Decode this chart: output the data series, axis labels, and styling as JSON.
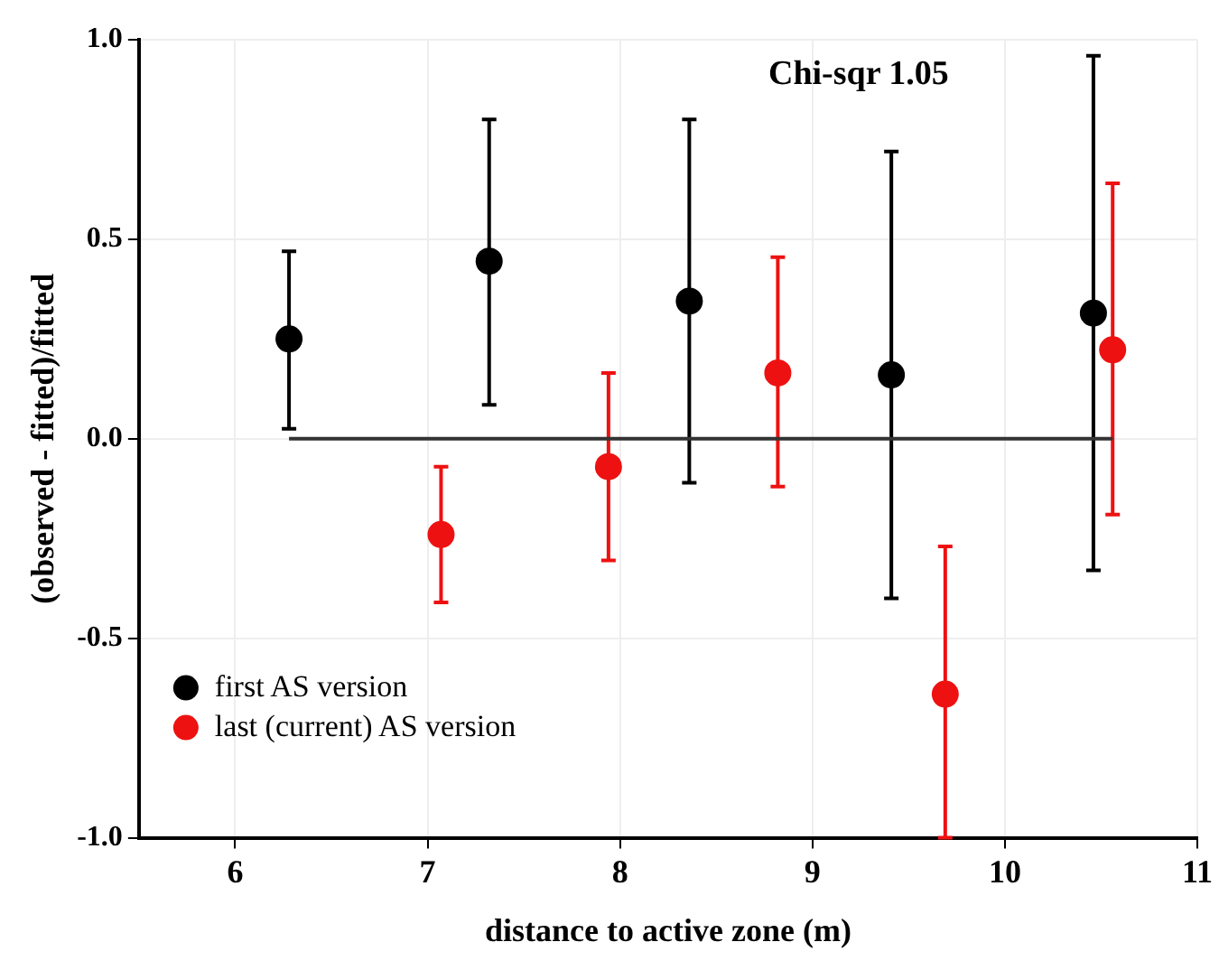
{
  "chart_data": {
    "type": "scatter",
    "title": "Chi-sqr 1.05",
    "xlabel": "distance to active zone (m)",
    "ylabel": "(observed - fitted)/fitted",
    "series": [
      {
        "name": "first AS version",
        "color": "#000000",
        "x": [
          6.28,
          7.32,
          8.36,
          9.41,
          10.46
        ],
        "values": [
          0.25,
          0.445,
          0.345,
          0.16,
          0.315
        ],
        "errors": [
          [
            0.025,
            0.47
          ],
          [
            0.085,
            0.8
          ],
          [
            -0.11,
            0.8
          ],
          [
            -0.4,
            0.72
          ],
          [
            -0.33,
            0.96
          ]
        ]
      },
      {
        "name": "last (current) AS version",
        "color": "#ee1111",
        "x": [
          7.07,
          7.94,
          8.82,
          9.69,
          10.56
        ],
        "values": [
          -0.24,
          -0.07,
          0.165,
          -0.64,
          0.223
        ],
        "errors": [
          [
            -0.41,
            -0.07
          ],
          [
            -0.305,
            0.165
          ],
          [
            -0.12,
            0.455
          ],
          [
            -1.0,
            -0.27
          ],
          [
            -0.19,
            0.64
          ]
        ]
      },
      {
        "type": "line",
        "color": "#333333",
        "x": [
          6.28,
          10.56
        ],
        "values": [
          0,
          0
        ],
        "marker": "none"
      }
    ],
    "xlim": [
      5.5,
      11
    ],
    "xticks": [
      6,
      7,
      8,
      9,
      10,
      11
    ],
    "ylim": [
      -1,
      1
    ],
    "yticks": [
      {
        "value": -1,
        "label": "-1.0"
      },
      {
        "value": -0.5,
        "label": "-0.5"
      },
      {
        "value": 0,
        "label": "0.0"
      },
      {
        "value": 0.5,
        "label": "0.5"
      },
      {
        "value": 1,
        "label": "1.0"
      }
    ],
    "grid": true,
    "legend": "bottom left",
    "marker": "circle"
  }
}
